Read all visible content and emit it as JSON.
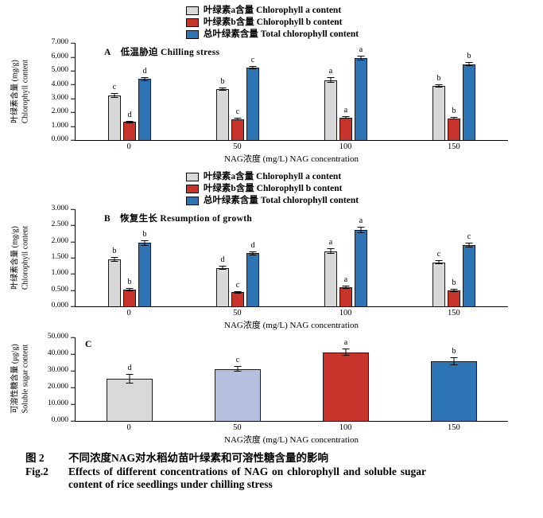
{
  "caption": {
    "cn_label": "图 2",
    "cn_text": "不同浓度NAG对水稻幼苗叶绿素和可溶性糖含量的影响",
    "en_label": "Fig.2",
    "en_text": "Effects of different concentrations of NAG on chlorophyll and soluble sugar content of rice seedlings under chilling stress"
  },
  "chart_data": [
    {
      "type": "bar",
      "panel_letter": "A",
      "panel_title": "低温胁迫 Chilling stress",
      "show_legend": true,
      "ylabel_cn": "叶绿素含量 (mg/g)",
      "ylabel_en": "Chlorophyll content",
      "xlabel": "NAG浓度 (mg/L) NAG concentration",
      "ylim": [
        0,
        7
      ],
      "ytick_step": 1,
      "categories": [
        "0",
        "50",
        "100",
        "150"
      ],
      "series": [
        {
          "name": "叶绿素a含量 Chlorophyll a content",
          "color": "#d9d9d9",
          "values": [
            3.2,
            3.65,
            4.3,
            3.9
          ],
          "errors": [
            0.15,
            0.12,
            0.2,
            0.12
          ],
          "sig_labels": [
            "c",
            "b",
            "a",
            "b"
          ]
        },
        {
          "name": "叶绿素b含量 Chlorophyll b content",
          "color": "#c8342b",
          "values": [
            1.3,
            1.5,
            1.62,
            1.55
          ],
          "errors": [
            0.08,
            0.1,
            0.1,
            0.08
          ],
          "sig_labels": [
            "d",
            "c",
            "a",
            "b"
          ]
        },
        {
          "name": "总叶绿素含量 Total chlorophyll content",
          "color": "#2e75b6",
          "values": [
            4.4,
            5.2,
            5.9,
            5.45
          ],
          "errors": [
            0.15,
            0.12,
            0.15,
            0.15
          ],
          "sig_labels": [
            "d",
            "c",
            "a",
            "b"
          ]
        }
      ]
    },
    {
      "type": "bar",
      "panel_letter": "B",
      "panel_title": "恢复生长 Resumption of growth",
      "show_legend": true,
      "ylabel_cn": "叶绿素含量 (mg/g)",
      "ylabel_en": "Chlorophyll content",
      "xlabel": "NAG浓度 (mg/L) NAG concentration",
      "ylim": [
        0,
        3
      ],
      "ytick_step": 0.5,
      "categories": [
        "0",
        "50",
        "100",
        "150"
      ],
      "series": [
        {
          "name": "叶绿素a含量 Chlorophyll a content",
          "color": "#d9d9d9",
          "values": [
            1.45,
            1.18,
            1.7,
            1.35
          ],
          "errors": [
            0.07,
            0.06,
            0.08,
            0.06
          ],
          "sig_labels": [
            "b",
            "d",
            "a",
            "c"
          ]
        },
        {
          "name": "叶绿素b含量 Chlorophyll b content",
          "color": "#c8342b",
          "values": [
            0.5,
            0.43,
            0.58,
            0.48
          ],
          "errors": [
            0.05,
            0.04,
            0.05,
            0.04
          ],
          "sig_labels": [
            "b",
            "c",
            "a",
            "b"
          ]
        },
        {
          "name": "总叶绿素含量 Total chlorophyll content",
          "color": "#2e75b6",
          "values": [
            1.95,
            1.63,
            2.35,
            1.88
          ],
          "errors": [
            0.08,
            0.07,
            0.1,
            0.07
          ],
          "sig_labels": [
            "b",
            "d",
            "a",
            "c"
          ]
        }
      ]
    },
    {
      "type": "bar",
      "panel_letter": "C",
      "panel_title": "",
      "show_legend": false,
      "ylabel_cn": "可溶性糖含量 (μg/g)",
      "ylabel_en": "Soluble sugar content",
      "xlabel": "NAG浓度 (mg/L) NAG concentration",
      "ylim": [
        0,
        50
      ],
      "ytick_step": 10,
      "categories": [
        "0",
        "50",
        "100",
        "150"
      ],
      "series": [
        {
          "name": "可溶性糖含量 Soluble sugar content",
          "colors": [
            "#d9d9d9",
            "#b4c0dd",
            "#c8342b",
            "#2e75b6"
          ],
          "values": [
            25,
            31,
            41,
            35.5
          ],
          "errors": [
            3,
            1.8,
            2,
            2.3
          ],
          "sig_labels": [
            "d",
            "c",
            "a",
            "b"
          ]
        }
      ]
    }
  ]
}
